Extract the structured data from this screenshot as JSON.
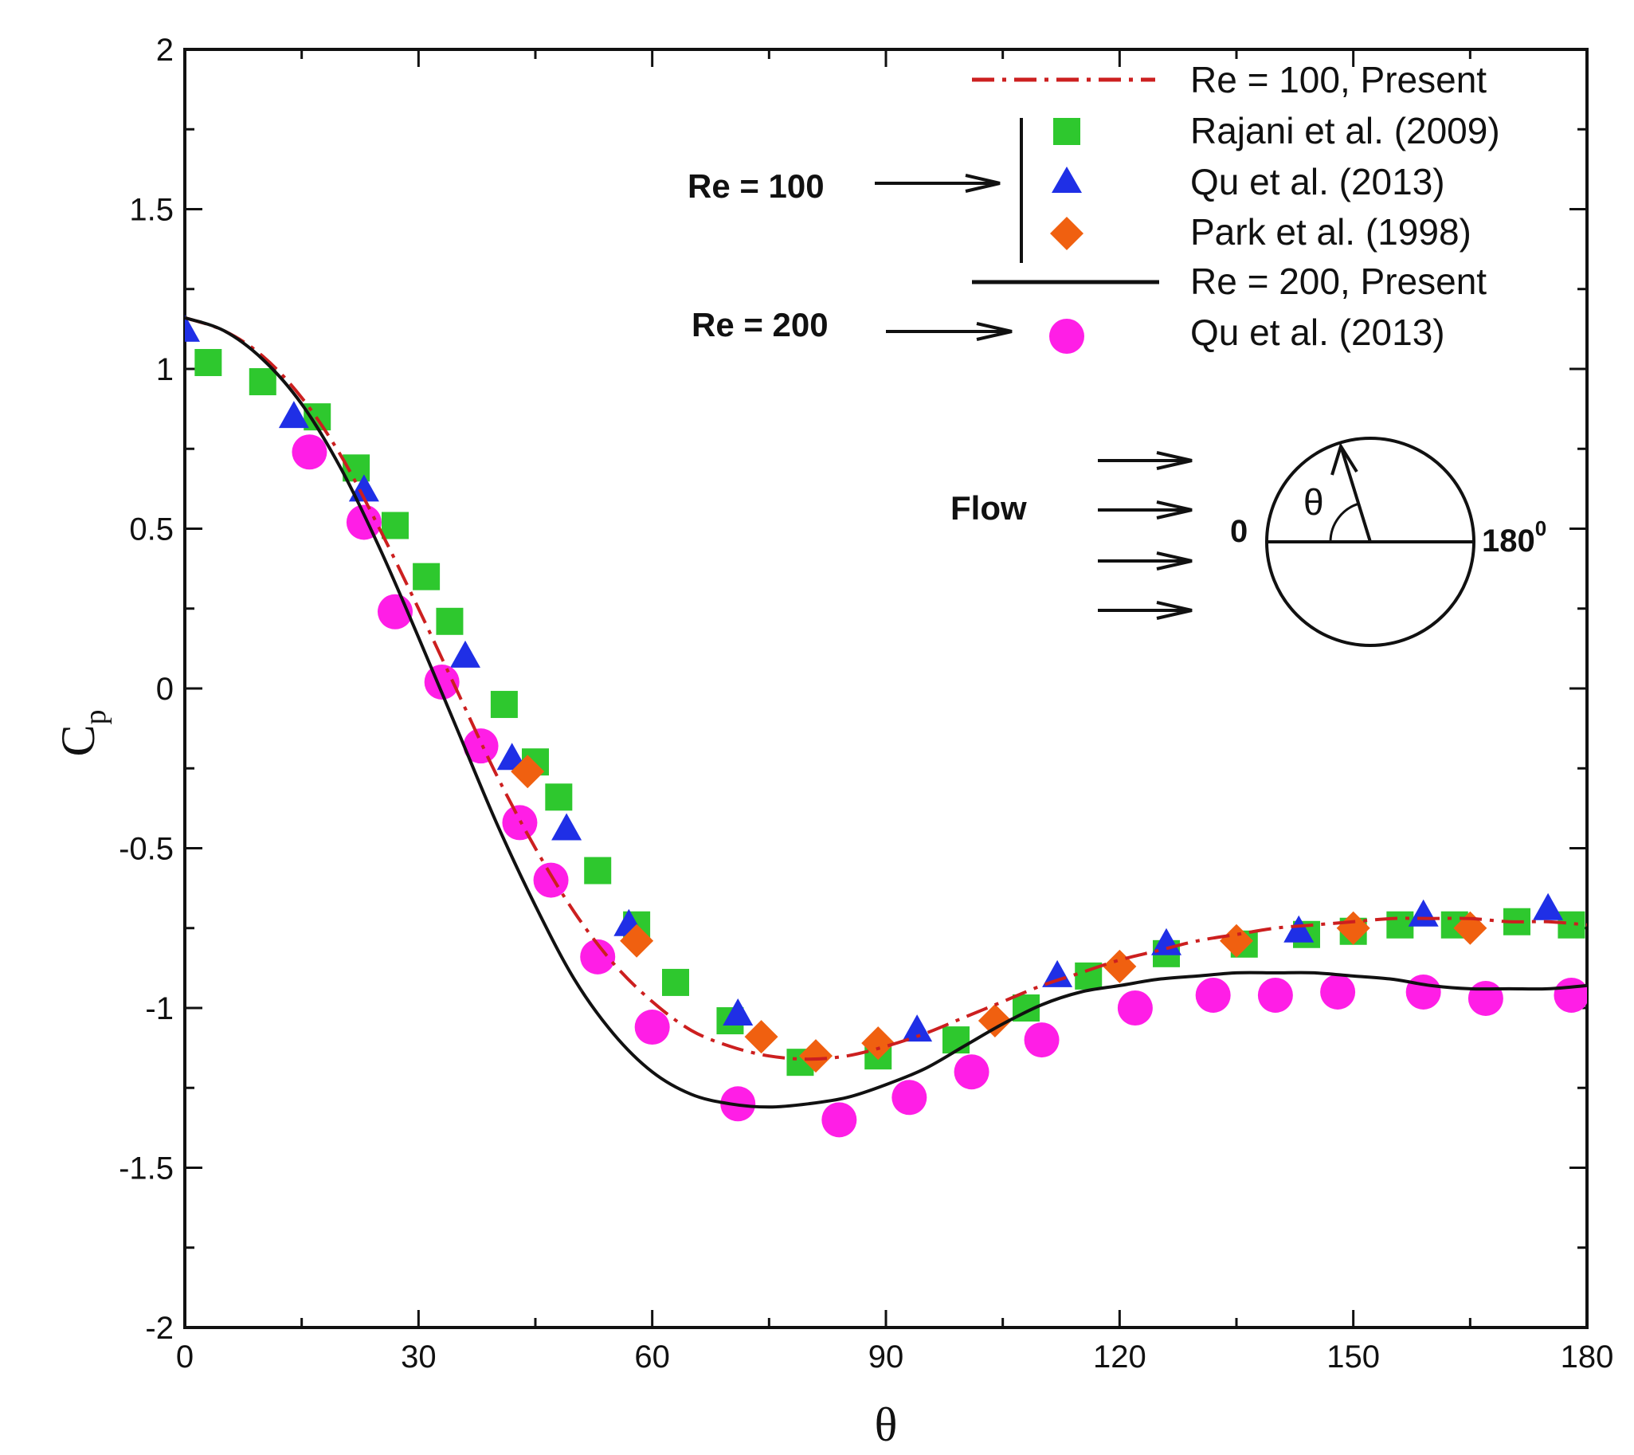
{
  "chart_data": {
    "type": "line",
    "title": "",
    "xlabel": "θ",
    "ylabel_main": "C",
    "ylabel_sub": "p",
    "xlim": [
      0,
      180
    ],
    "ylim": [
      -2,
      2
    ],
    "xticks": [
      0,
      30,
      60,
      90,
      120,
      150,
      180
    ],
    "yticks": [
      -2,
      -1.5,
      -1,
      -0.5,
      0,
      0.5,
      1,
      1.5,
      2
    ],
    "ytick_labels": [
      "-2",
      "-1.5",
      "-1",
      "-0.5",
      "0",
      "0.5",
      "1",
      "1.5",
      "2"
    ],
    "grid": false,
    "legend_position": "top-right",
    "group_labels": {
      "re100": "Re = 100",
      "re200": "Re = 200"
    },
    "series": [
      {
        "name": "Re = 100, Present",
        "kind": "line",
        "style": "dash-dot",
        "color": "#cc1f1f",
        "x": [
          0,
          5,
          10,
          15,
          20,
          25,
          30,
          35,
          40,
          45,
          50,
          55,
          60,
          65,
          70,
          75,
          80,
          85,
          90,
          95,
          100,
          105,
          110,
          115,
          120,
          125,
          130,
          135,
          140,
          145,
          150,
          155,
          160,
          165,
          170,
          175,
          180
        ],
        "y": [
          1.16,
          1.12,
          1.04,
          0.91,
          0.73,
          0.5,
          0.25,
          -0.01,
          -0.27,
          -0.5,
          -0.7,
          -0.86,
          -0.98,
          -1.07,
          -1.12,
          -1.15,
          -1.16,
          -1.15,
          -1.12,
          -1.08,
          -1.03,
          -0.98,
          -0.93,
          -0.89,
          -0.85,
          -0.82,
          -0.79,
          -0.77,
          -0.75,
          -0.74,
          -0.73,
          -0.72,
          -0.72,
          -0.72,
          -0.73,
          -0.73,
          -0.74
        ]
      },
      {
        "name": "Rajani et al. (2009)",
        "kind": "marker",
        "marker": "square",
        "color": "#2ec82e",
        "x": [
          3,
          10,
          17,
          22,
          27,
          31,
          34,
          41,
          45,
          48,
          53,
          58,
          63,
          70,
          79,
          89,
          99,
          108,
          116,
          126,
          136,
          144,
          150,
          156,
          163,
          171,
          178
        ],
        "y": [
          1.02,
          0.96,
          0.85,
          0.69,
          0.51,
          0.35,
          0.21,
          -0.05,
          -0.23,
          -0.34,
          -0.57,
          -0.74,
          -0.92,
          -1.04,
          -1.17,
          -1.15,
          -1.1,
          -1.0,
          -0.9,
          -0.83,
          -0.8,
          -0.77,
          -0.76,
          -0.74,
          -0.74,
          -0.73,
          -0.74
        ]
      },
      {
        "name": "Qu et al. (2013)",
        "kind": "marker",
        "marker": "triangle",
        "color": "#1f2fe6",
        "x": [
          0,
          14,
          23,
          36,
          42,
          49,
          57,
          71,
          94,
          112,
          126,
          143,
          159,
          175
        ],
        "y": [
          1.12,
          0.85,
          0.62,
          0.1,
          -0.22,
          -0.44,
          -0.74,
          -1.02,
          -1.07,
          -0.9,
          -0.8,
          -0.76,
          -0.71,
          -0.69
        ]
      },
      {
        "name": "Park et al. (1998)",
        "kind": "marker",
        "marker": "diamond",
        "color": "#f06010",
        "x": [
          44,
          58,
          74,
          81,
          89,
          104,
          120,
          135,
          150,
          165
        ],
        "y": [
          -0.26,
          -0.79,
          -1.09,
          -1.15,
          -1.11,
          -1.04,
          -0.87,
          -0.79,
          -0.75,
          -0.75
        ]
      },
      {
        "name": "Re = 200, Present",
        "kind": "line",
        "style": "solid",
        "color": "#111111",
        "x": [
          0,
          5,
          10,
          15,
          20,
          25,
          30,
          35,
          40,
          45,
          50,
          55,
          60,
          65,
          70,
          75,
          80,
          85,
          90,
          95,
          100,
          105,
          110,
          115,
          120,
          125,
          130,
          135,
          140,
          145,
          150,
          155,
          160,
          165,
          170,
          175,
          180
        ],
        "y": [
          1.16,
          1.12,
          1.03,
          0.89,
          0.69,
          0.44,
          0.16,
          -0.13,
          -0.42,
          -0.68,
          -0.91,
          -1.08,
          -1.2,
          -1.27,
          -1.3,
          -1.31,
          -1.3,
          -1.28,
          -1.24,
          -1.19,
          -1.12,
          -1.05,
          -0.99,
          -0.95,
          -0.93,
          -0.91,
          -0.9,
          -0.89,
          -0.89,
          -0.89,
          -0.9,
          -0.91,
          -0.93,
          -0.94,
          -0.94,
          -0.94,
          -0.93
        ]
      },
      {
        "name": "Qu et al. (2013)",
        "kind": "marker",
        "marker": "circle",
        "color": "#ff1ee6",
        "x": [
          16,
          23,
          27,
          33,
          38,
          43,
          47,
          53,
          60,
          71,
          84,
          93,
          101,
          110,
          122,
          132,
          140,
          148,
          159,
          167,
          178
        ],
        "y": [
          0.74,
          0.52,
          0.24,
          0.02,
          -0.18,
          -0.42,
          -0.6,
          -0.84,
          -1.06,
          -1.3,
          -1.35,
          -1.28,
          -1.2,
          -1.1,
          -1.0,
          -0.96,
          -0.96,
          -0.95,
          -0.95,
          -0.97,
          -0.96
        ]
      }
    ],
    "inset": {
      "flow_label": "Flow",
      "theta_label": "θ",
      "left_label": "0",
      "right_label": "180",
      "right_sup": "0"
    }
  }
}
